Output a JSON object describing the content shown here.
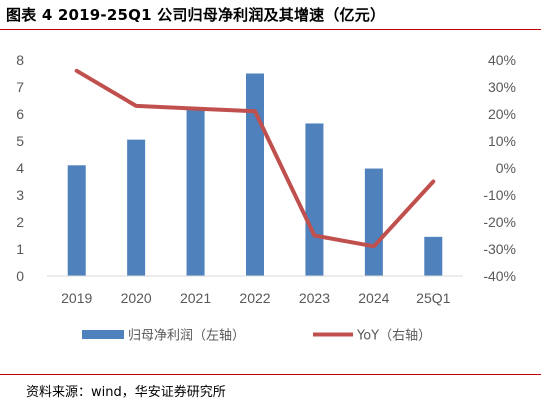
{
  "title": "图表 4 2019-25Q1 公司归母净利润及其增速（亿元）",
  "source": "资料来源：wind，华安证券研究所",
  "colors": {
    "bar": "#4f81bd",
    "line": "#c0504d",
    "axis_text": "#595959",
    "rule": "#c00000"
  },
  "chart_data": {
    "type": "bar+line",
    "categories": [
      "2019",
      "2020",
      "2021",
      "2022",
      "2023",
      "2024",
      "25Q1"
    ],
    "series": [
      {
        "name": "归母净利润（左轴）",
        "type": "bar",
        "axis": "left",
        "values": [
          4.1,
          5.05,
          6.2,
          7.5,
          5.65,
          3.98,
          1.45
        ]
      },
      {
        "name": "YoY（右轴）",
        "type": "line",
        "axis": "right",
        "unit": "%",
        "values": [
          36,
          23,
          22,
          21,
          -25,
          -29,
          -5
        ]
      }
    ],
    "left_axis": {
      "min": 0,
      "max": 8,
      "ticks": [
        "0",
        "1",
        "2",
        "3",
        "4",
        "5",
        "6",
        "7",
        "8"
      ]
    },
    "right_axis": {
      "min": -40,
      "max": 40,
      "ticks": [
        "-40%",
        "-30%",
        "-20%",
        "-10%",
        "0%",
        "10%",
        "20%",
        "30%",
        "40%"
      ]
    },
    "legend_position": "bottom",
    "grid": false
  }
}
